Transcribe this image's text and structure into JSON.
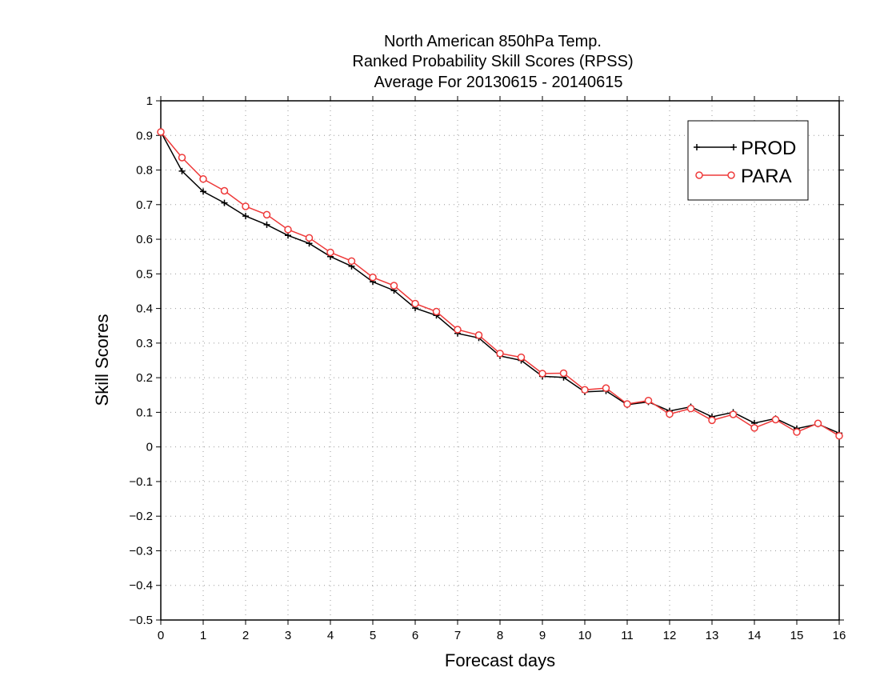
{
  "chart_data": {
    "type": "line",
    "title_lines": [
      "North American 850hPa Temp.",
      "Ranked Probability Skill Scores (RPSS)",
      "Average For 20130615 - 20140615"
    ],
    "xlabel": "Forecast days",
    "ylabel": "Skill Scores",
    "xlim": [
      0,
      16
    ],
    "ylim": [
      -0.5,
      1
    ],
    "xticks": [
      "0",
      "1",
      "2",
      "3",
      "4",
      "5",
      "6",
      "7",
      "8",
      "9",
      "10",
      "11",
      "12",
      "13",
      "14",
      "15",
      "16"
    ],
    "yticks": [
      "−0.5",
      "−0.4",
      "−0.3",
      "−0.2",
      "−0.1",
      "0",
      "0.1",
      "0.2",
      "0.3",
      "0.4",
      "0.5",
      "0.6",
      "0.7",
      "0.8",
      "0.9",
      "1"
    ],
    "grid": true,
    "legend_position": "top-right",
    "x": [
      0,
      0.5,
      1,
      1.5,
      2,
      2.5,
      3,
      3.5,
      4,
      4.5,
      5,
      5.5,
      6,
      6.5,
      7,
      7.5,
      8,
      8.5,
      9,
      9.5,
      10,
      10.5,
      11,
      11.5,
      12,
      12.5,
      13,
      13.5,
      14,
      14.5,
      15,
      15.5,
      16
    ],
    "series": [
      {
        "name": "PROD",
        "color": "#000000",
        "marker": "plus",
        "values": [
          0.91,
          0.797,
          0.738,
          0.705,
          0.667,
          0.642,
          0.611,
          0.588,
          0.55,
          0.522,
          0.477,
          0.452,
          0.401,
          0.38,
          0.328,
          0.315,
          0.263,
          0.25,
          0.204,
          0.201,
          0.159,
          0.162,
          0.122,
          0.13,
          0.104,
          0.116,
          0.087,
          0.1,
          0.069,
          0.082,
          0.053,
          0.066,
          0.04
        ]
      },
      {
        "name": "PARA",
        "color": "#ee3a3a",
        "marker": "circle",
        "values": [
          0.91,
          0.836,
          0.774,
          0.74,
          0.695,
          0.671,
          0.628,
          0.604,
          0.562,
          0.537,
          0.49,
          0.466,
          0.414,
          0.391,
          0.339,
          0.323,
          0.27,
          0.259,
          0.212,
          0.213,
          0.165,
          0.17,
          0.124,
          0.134,
          0.095,
          0.111,
          0.077,
          0.094,
          0.055,
          0.079,
          0.043,
          0.068,
          0.032
        ]
      }
    ]
  }
}
